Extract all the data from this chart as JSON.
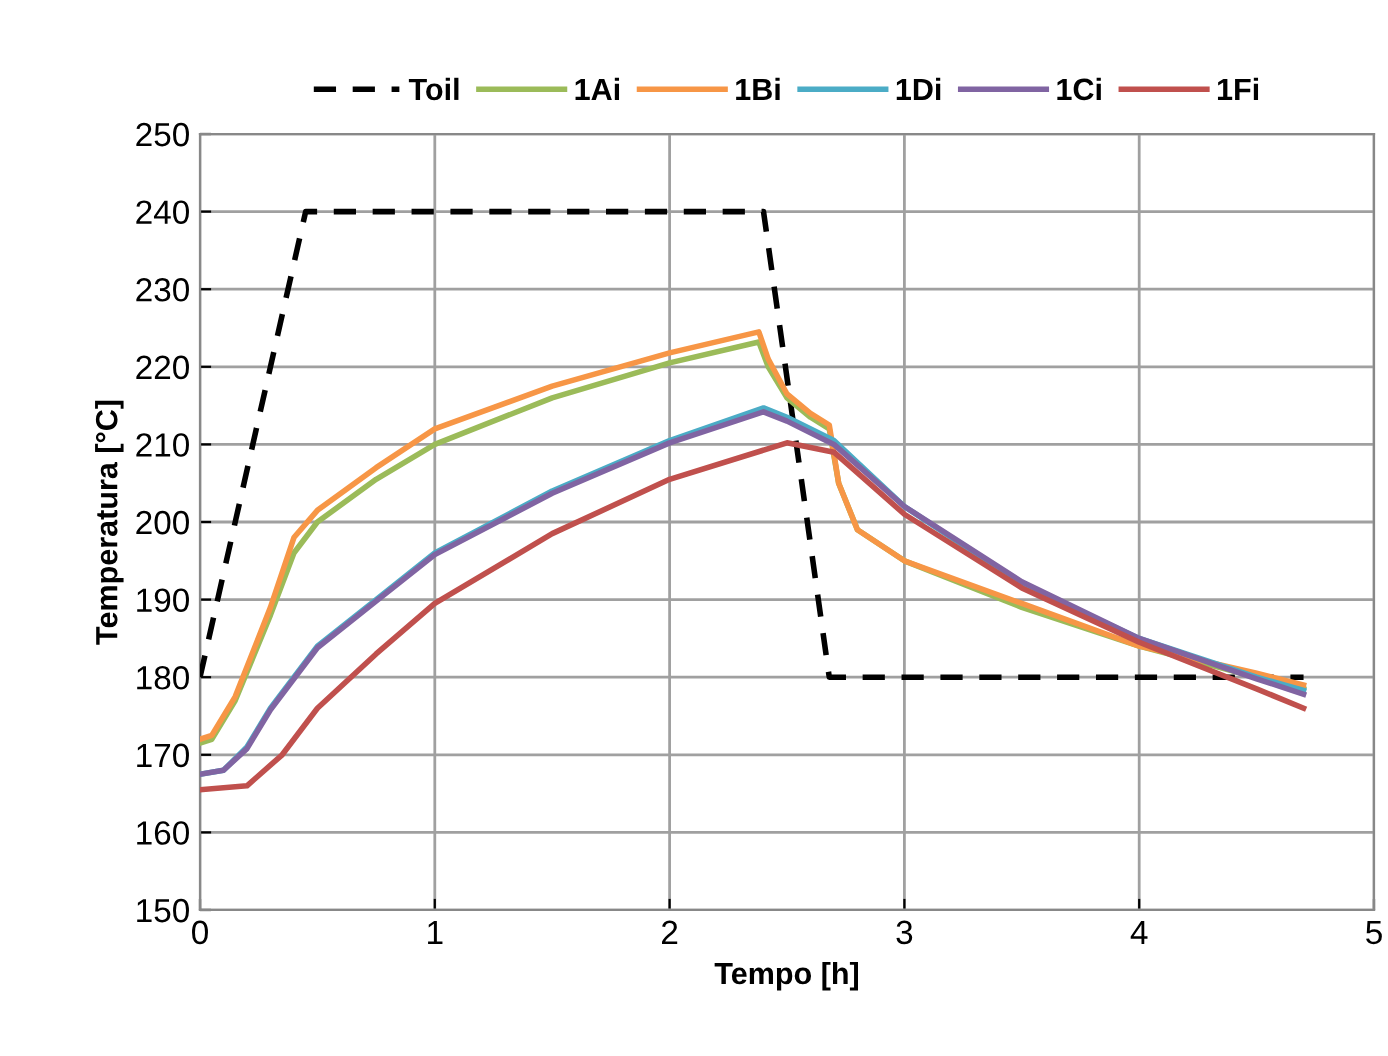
{
  "chart_data": {
    "type": "line",
    "xlabel": "Tempo [h]",
    "ylabel": "Temperatura [°C]",
    "xlim": [
      0,
      5
    ],
    "xticks": [
      0,
      1,
      2,
      3,
      4,
      5
    ],
    "ylim": [
      150,
      250
    ],
    "yticks": [
      150,
      160,
      170,
      180,
      190,
      200,
      210,
      220,
      230,
      240,
      250
    ],
    "grid": true,
    "legend": "top",
    "marker": "none",
    "series": [
      {
        "name": "Toil",
        "color": "#000000",
        "line_style": "dashed",
        "x": [
          0,
          0.45,
          2.4,
          2.68,
          4.7
        ],
        "values": [
          180,
          240,
          240,
          180,
          180
        ]
      },
      {
        "name": "1Ai",
        "color": "#9bbb59",
        "x": [
          0,
          0.05,
          0.15,
          0.3,
          0.4,
          0.5,
          0.75,
          1.0,
          1.5,
          2.0,
          2.38,
          2.42,
          2.5,
          2.6,
          2.68,
          2.72,
          2.8,
          3.0,
          3.5,
          4.0,
          4.5,
          4.7
        ],
        "values": [
          171.5,
          172,
          177,
          188,
          196,
          200,
          205.5,
          210,
          216,
          220.5,
          223.2,
          220,
          216,
          213.5,
          212,
          205,
          199,
          195,
          189,
          184,
          180,
          178.5
        ]
      },
      {
        "name": "1Bi",
        "color": "#f79646",
        "x": [
          0,
          0.05,
          0.15,
          0.3,
          0.4,
          0.5,
          0.75,
          1.0,
          1.5,
          2.0,
          2.38,
          2.42,
          2.5,
          2.6,
          2.68,
          2.72,
          2.8,
          3.0,
          3.5,
          4.0,
          4.5,
          4.7
        ],
        "values": [
          172,
          172.5,
          177.5,
          189,
          198,
          201.5,
          207,
          212,
          217.5,
          221.8,
          224.5,
          221,
          216.5,
          214,
          212.5,
          205,
          199,
          195,
          189.5,
          184,
          180.5,
          179
        ]
      },
      {
        "name": "1Di",
        "color": "#4bacc6",
        "x": [
          0,
          0.1,
          0.2,
          0.3,
          0.5,
          0.75,
          1.0,
          1.5,
          2.0,
          2.4,
          2.5,
          2.7,
          3.0,
          3.5,
          4.0,
          4.5,
          4.7
        ],
        "values": [
          167.5,
          168,
          171,
          176,
          184,
          190,
          196,
          204,
          210.5,
          214.7,
          213.5,
          210.5,
          202,
          192,
          185,
          180,
          178.3
        ]
      },
      {
        "name": "1Ci",
        "color": "#8064a2",
        "x": [
          0,
          0.1,
          0.2,
          0.3,
          0.5,
          0.75,
          1.0,
          1.5,
          2.0,
          2.4,
          2.5,
          2.7,
          3.0,
          3.5,
          4.0,
          4.5,
          4.7
        ],
        "values": [
          167.5,
          168,
          170.8,
          175.8,
          183.8,
          189.8,
          195.8,
          203.7,
          210.2,
          214.2,
          213,
          210,
          202,
          192.3,
          185,
          179.8,
          177.8
        ]
      },
      {
        "name": "1Fi",
        "color": "#c0504d",
        "x": [
          0,
          0.2,
          0.35,
          0.5,
          0.75,
          1.0,
          1.5,
          2.0,
          2.5,
          2.7,
          2.85,
          3.0,
          3.5,
          4.0,
          4.5,
          4.7
        ],
        "values": [
          165.5,
          166,
          170,
          176,
          183,
          189.5,
          198.5,
          205.5,
          210.2,
          209,
          205,
          201,
          191.5,
          184.5,
          178.5,
          176
        ]
      }
    ]
  }
}
